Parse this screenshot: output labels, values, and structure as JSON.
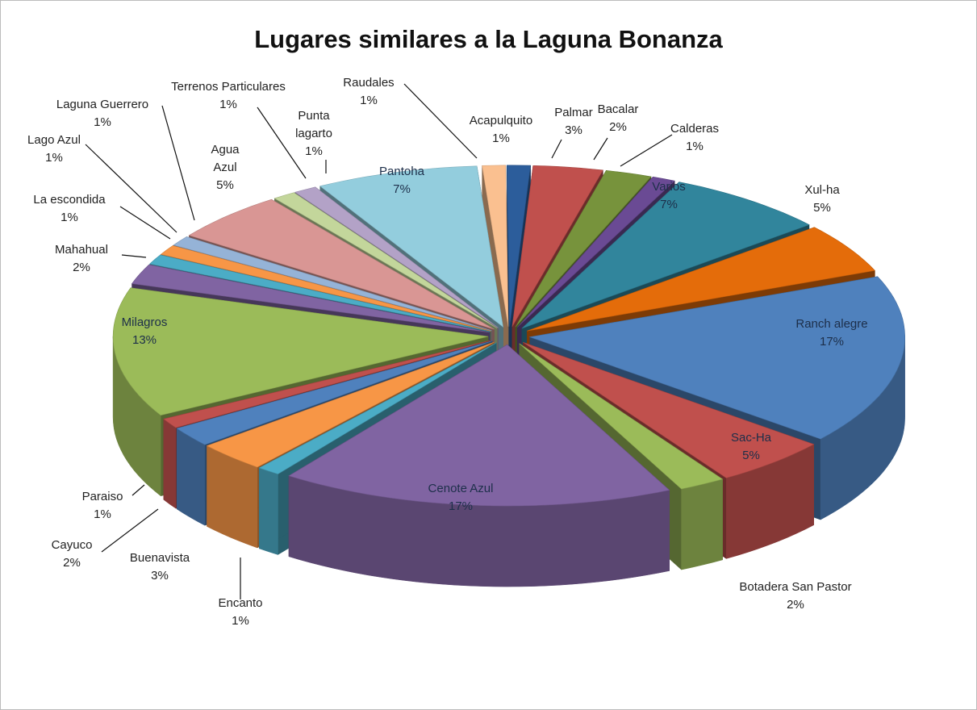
{
  "chart_data": {
    "type": "pie",
    "title": "Lugares similares a la Laguna Bonanza",
    "categories": [
      "Raudales",
      "Acapulquito",
      "Palmar",
      "Bacalar",
      "Calderas",
      "Varios",
      "Xul-ha",
      "Ranch alegre",
      "Sac-Ha",
      "Botadera San Pastor",
      "Cenote Azul",
      "Encanto",
      "Buenavista",
      "Cayuco",
      "Paraiso",
      "Milagros",
      "Mahahual",
      "La escondida",
      "Lago Azul",
      "Laguna Guerrero",
      "Agua Azul",
      "Terrenos Particulares",
      "Punta lagarto",
      "Pantoha"
    ],
    "values": [
      1,
      1,
      3,
      2,
      1,
      7,
      5,
      17,
      5,
      2,
      17,
      1,
      3,
      2,
      1,
      13,
      2,
      1,
      1,
      1,
      5,
      1,
      1,
      7
    ],
    "value_labels": [
      "1%",
      "1%",
      "3%",
      "2%",
      "1%",
      "7%",
      "5%",
      "17%",
      "5%",
      "2%",
      "17%",
      "1%",
      "3%",
      "2%",
      "1%",
      "13%",
      "2%",
      "1%",
      "1%",
      "1%",
      "5%",
      "1%",
      "1%",
      "7%"
    ],
    "colors": [
      "#fac090",
      "#2c5d9b",
      "#c0504d",
      "#77933c",
      "#6a4a94",
      "#31859c",
      "#e46c0a",
      "#4f81bd",
      "#c0504d",
      "#9bbb59",
      "#8064a2",
      "#4bacc6",
      "#f79646",
      "#4f81bd",
      "#c0504d",
      "#9bbb59",
      "#8064a2",
      "#4bacc6",
      "#f79646",
      "#95b3d7",
      "#d99694",
      "#c3d69b",
      "#b3a2c7",
      "#93cddd"
    ]
  }
}
